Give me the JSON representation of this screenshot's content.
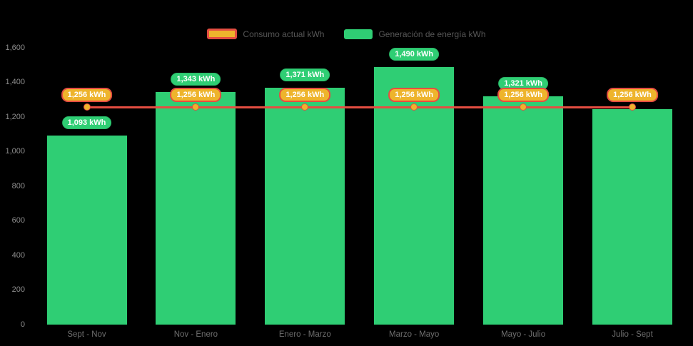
{
  "legend": {
    "items": [
      {
        "label": "Consumo actual kWh",
        "series_type": "line"
      },
      {
        "label": "Generación de energía kWh",
        "series_type": "bar"
      }
    ]
  },
  "chart_data": {
    "type": "bar",
    "title": "",
    "xlabel": "",
    "ylabel": "",
    "grid": false,
    "legend_position": "top",
    "ylim": [
      0,
      1600
    ],
    "y_ticks": [
      "1,600",
      "1,400",
      "1,200",
      "1,000",
      "800",
      "600",
      "400",
      "200",
      "0"
    ],
    "categories": [
      "Sept - Nov",
      "Nov - Enero",
      "Enero - Marzo",
      "Marzo - Mayo",
      "Mayo - Julio",
      "Julio - Sept"
    ],
    "series": [
      {
        "name": "Generación de energía kWh",
        "type": "bar",
        "values": [
          1093,
          1343,
          1371,
          1490,
          1321,
          1245
        ],
        "data_labels": [
          "1,093 kWh",
          "1,343 kWh",
          "1,371 kWh",
          "1,490 kWh",
          "1,321 kWh",
          null
        ]
      },
      {
        "name": "Consumo actual kWh",
        "type": "line",
        "values": [
          1256,
          1256,
          1256,
          1256,
          1256,
          1256
        ],
        "data_labels": [
          "1,256 kWh",
          "1,256 kWh",
          "1,256 kWh",
          "1,256 kWh",
          "1,256 kWh",
          "1,256 kWh"
        ]
      }
    ]
  },
  "colors": {
    "background": "#000000",
    "bar_green": "#2fce74",
    "green_label_border": "#29b967",
    "line_red": "#e44d41",
    "marker_amber": "#eeb42c",
    "pill_text": "#ffffff",
    "y_tick_text": "#8c8c8c",
    "x_tick_text": "#6e6e6e",
    "legend_text": "#565656"
  }
}
